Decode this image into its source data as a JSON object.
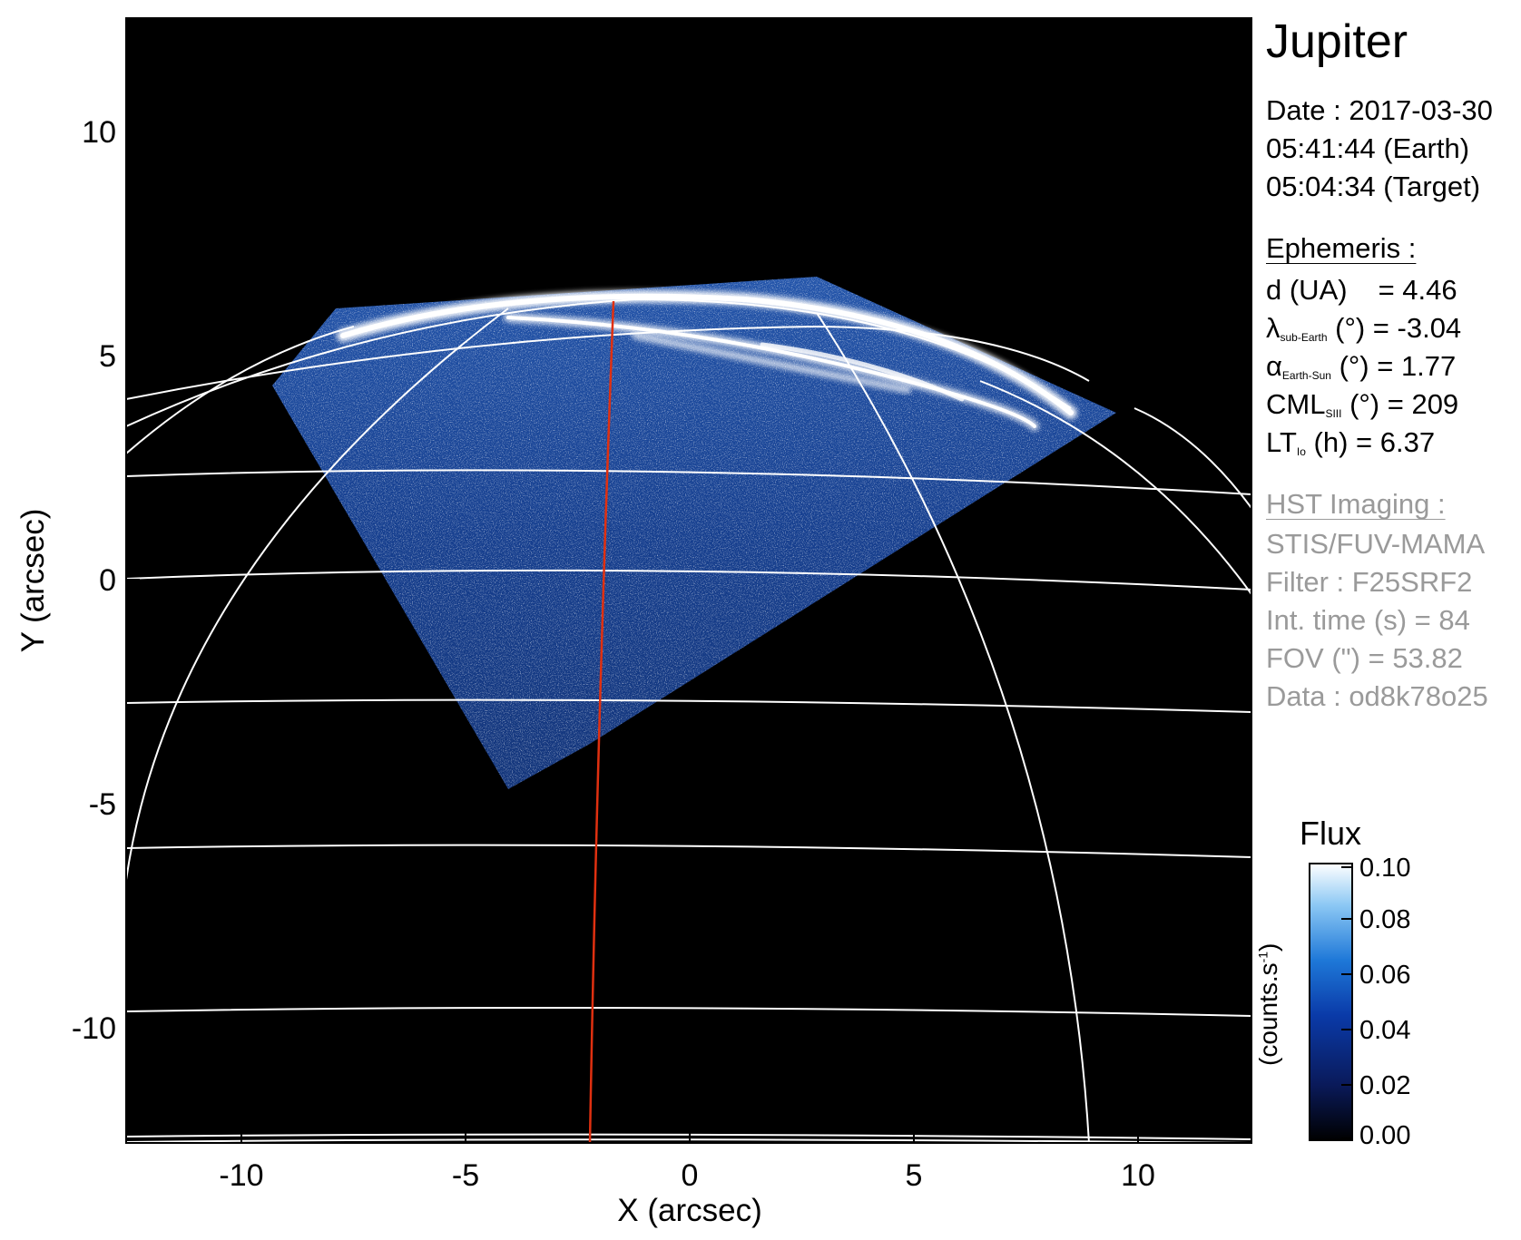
{
  "title": "Jupiter",
  "info": {
    "date": "Date : 2017-03-30",
    "time_earth": "05:41:44 (Earth)",
    "time_target": "05:04:34 (Target)"
  },
  "ephemeris": {
    "header": "Ephemeris :",
    "d_label": "d (UA)",
    "d_value": "= 4.46",
    "lambda_sym": "λ",
    "lambda_sub": "sub-Earth",
    "lambda_value": " (°) = -3.04",
    "alpha_sym": "α",
    "alpha_sub": "Earth-Sun",
    "alpha_value": " (°) = 1.77",
    "cml_sym": "CML",
    "cml_sub": "SIII",
    "cml_value": " (°) = 209",
    "lt_sym": "LT",
    "lt_sub": "Io",
    "lt_value": " (h) = 6.37"
  },
  "hst": {
    "header": "HST Imaging :",
    "instrument": "STIS/FUV-MAMA",
    "filter": "Filter : F25SRF2",
    "int_time": "Int. time (s) = 84",
    "fov": "FOV (\") = 53.82",
    "data": "Data : od8k78o25"
  },
  "colorbar": {
    "title": "Flux",
    "unit": "(counts.s",
    "unit_sup": "-1",
    "unit_close": ")",
    "ticks": [
      "0.10",
      "0.08",
      "0.06",
      "0.04",
      "0.02",
      "0.00"
    ],
    "min": 0.0,
    "max": 0.1
  },
  "axes": {
    "xlabel": "X (arcsec)",
    "ylabel": "Y (arcsec)",
    "xticks": [
      "-10",
      "-5",
      "0",
      "5",
      "10"
    ],
    "yticks": [
      "10",
      "5",
      "0",
      "-5",
      "-10"
    ],
    "xlim": [
      -12.5,
      12.5
    ],
    "ylim": [
      -12.5,
      12.5
    ]
  },
  "colors": {
    "background": "#000000",
    "grid": "#ffffff",
    "meridian": "#e03010",
    "emission_low": "#0a2a8a",
    "emission_high": "#ffffff"
  }
}
